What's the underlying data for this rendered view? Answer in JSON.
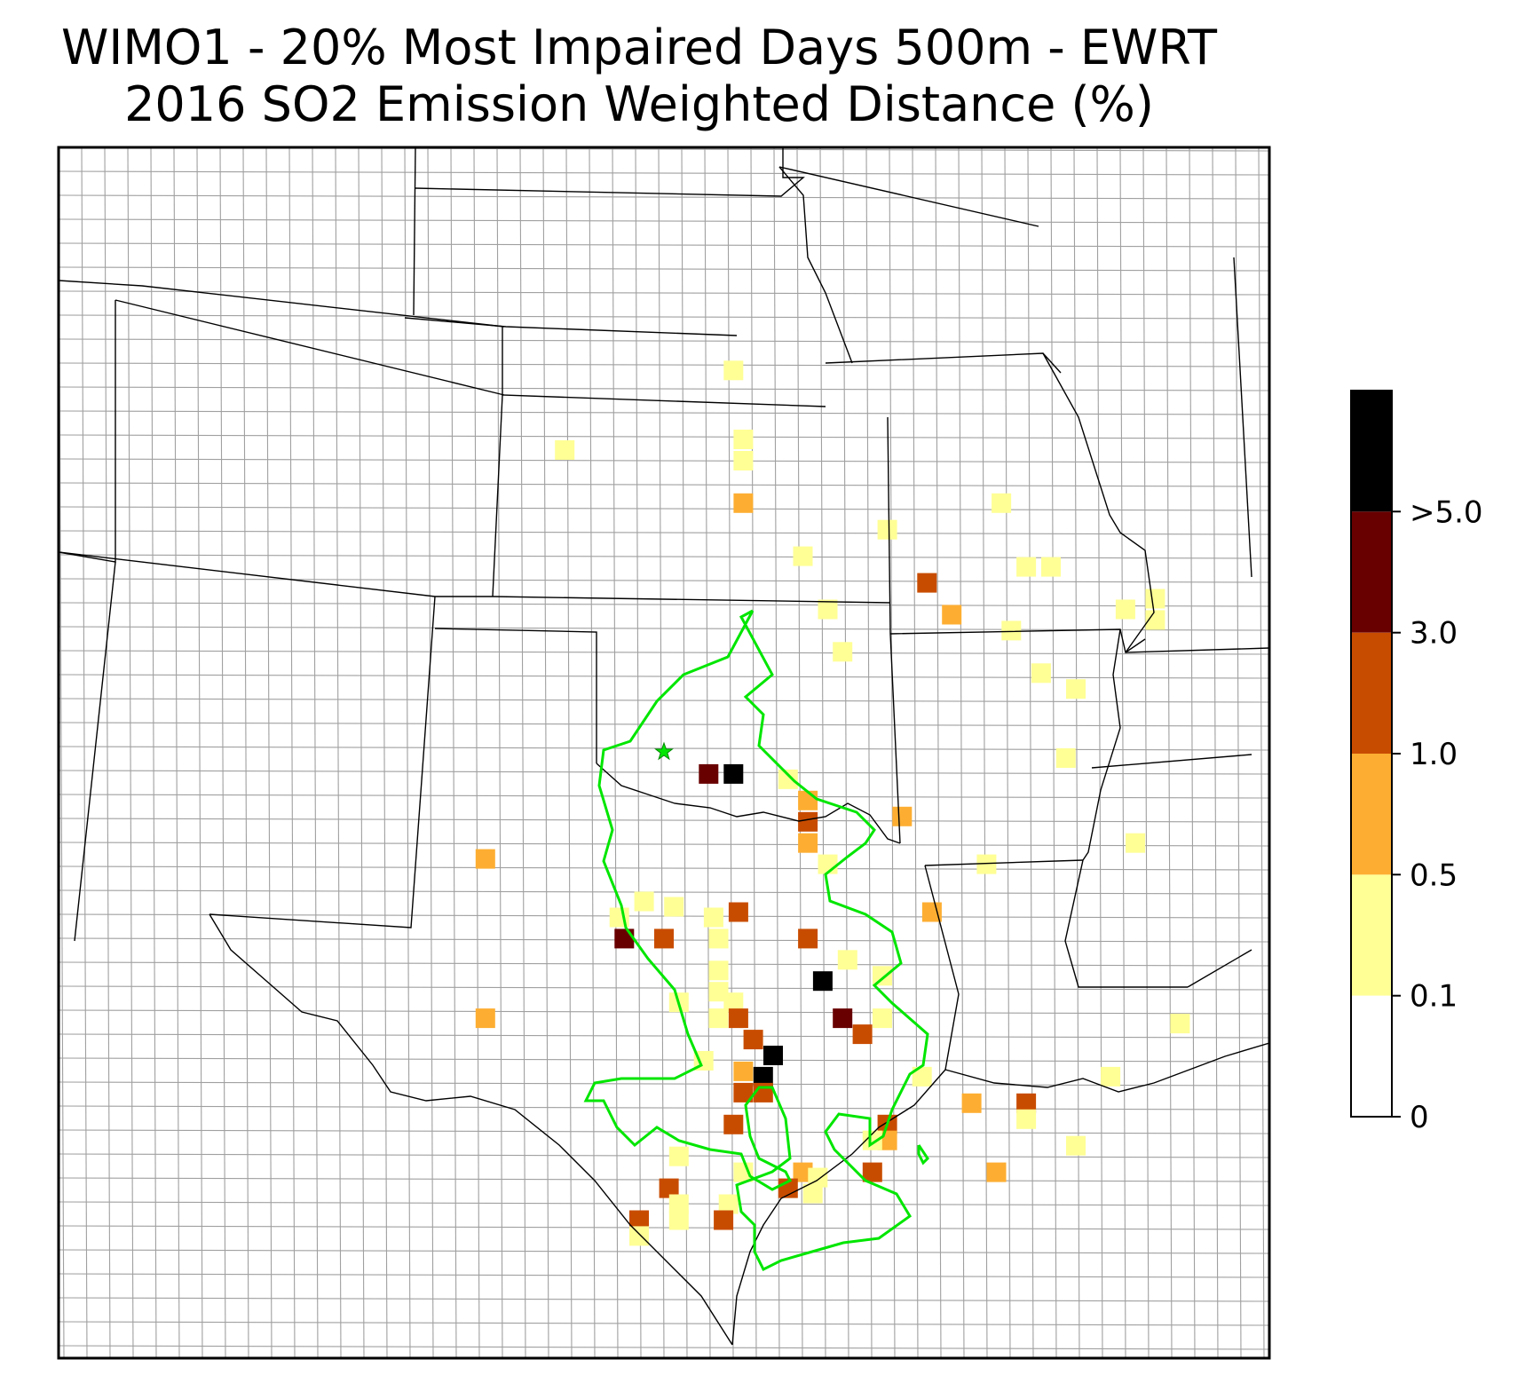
{
  "title": {
    "line1": "WIMO1 - 20% Most Impaired Days 500m - EWRT",
    "line2": "2016 SO2 Emission Weighted Distance (%)"
  },
  "colors": {
    "bin_0_01": "#ffffff",
    "bin_01_05": "#ffff96",
    "bin_05_10": "#fdae32",
    "bin_10_30": "#c84c00",
    "bin_30_50": "#690000",
    "bin_gt5": "#000000",
    "contour": "#00e600",
    "state_border": "#000000",
    "county_border": "#a0a0a0"
  },
  "colorbar": {
    "ticks": [
      "0",
      "0.1",
      "0.5",
      "1.0",
      "3.0",
      ">5.0"
    ]
  },
  "markers": {
    "site": "star",
    "site_icon": "star-icon"
  },
  "cells": [
    {
      "lon": -97.0,
      "lat": 44.6,
      "bin": "bin_01_05"
    },
    {
      "lon": -100.4,
      "lat": 43.1,
      "bin": "bin_01_05"
    },
    {
      "lon": -96.8,
      "lat": 43.3,
      "bin": "bin_01_05"
    },
    {
      "lon": -96.8,
      "lat": 42.9,
      "bin": "bin_01_05"
    },
    {
      "lon": -96.8,
      "lat": 42.1,
      "bin": "bin_05_10"
    },
    {
      "lon": -91.6,
      "lat": 42.1,
      "bin": "bin_01_05"
    },
    {
      "lon": -90.6,
      "lat": 40.9,
      "bin": "bin_01_05"
    },
    {
      "lon": -93.9,
      "lat": 41.6,
      "bin": "bin_01_05"
    },
    {
      "lon": -95.6,
      "lat": 41.1,
      "bin": "bin_01_05"
    },
    {
      "lon": -93.1,
      "lat": 40.6,
      "bin": "bin_10_30"
    },
    {
      "lon": -91.1,
      "lat": 40.9,
      "bin": "bin_01_05"
    },
    {
      "lon": -92.6,
      "lat": 40.0,
      "bin": "bin_05_10"
    },
    {
      "lon": -95.1,
      "lat": 40.1,
      "bin": "bin_01_05"
    },
    {
      "lon": -94.8,
      "lat": 39.3,
      "bin": "bin_01_05"
    },
    {
      "lon": -91.4,
      "lat": 39.7,
      "bin": "bin_01_05"
    },
    {
      "lon": -90.8,
      "lat": 38.9,
      "bin": "bin_01_05"
    },
    {
      "lon": -97.5,
      "lat": 37.0,
      "bin": "bin_30_50"
    },
    {
      "lon": -97.0,
      "lat": 37.0,
      "bin": "bin_gt5"
    },
    {
      "lon": -95.9,
      "lat": 36.9,
      "bin": "bin_01_05"
    },
    {
      "lon": -95.5,
      "lat": 36.5,
      "bin": "bin_05_10"
    },
    {
      "lon": -95.5,
      "lat": 36.1,
      "bin": "bin_10_30"
    },
    {
      "lon": -95.5,
      "lat": 35.7,
      "bin": "bin_05_10"
    },
    {
      "lon": -95.1,
      "lat": 35.3,
      "bin": "bin_01_05"
    },
    {
      "lon": -93.6,
      "lat": 36.2,
      "bin": "bin_05_10"
    },
    {
      "lon": -91.9,
      "lat": 35.3,
      "bin": "bin_01_05"
    },
    {
      "lon": -102.0,
      "lat": 35.4,
      "bin": "bin_05_10"
    },
    {
      "lon": -98.8,
      "lat": 34.6,
      "bin": "bin_01_05"
    },
    {
      "lon": -98.2,
      "lat": 34.5,
      "bin": "bin_01_05"
    },
    {
      "lon": -97.4,
      "lat": 34.3,
      "bin": "bin_01_05"
    },
    {
      "lon": -96.9,
      "lat": 34.4,
      "bin": "bin_10_30"
    },
    {
      "lon": -99.3,
      "lat": 34.3,
      "bin": "bin_01_05"
    },
    {
      "lon": -99.2,
      "lat": 33.9,
      "bin": "bin_30_50"
    },
    {
      "lon": -98.4,
      "lat": 33.9,
      "bin": "bin_10_30"
    },
    {
      "lon": -97.3,
      "lat": 33.9,
      "bin": "bin_01_05"
    },
    {
      "lon": -95.5,
      "lat": 33.9,
      "bin": "bin_10_30"
    },
    {
      "lon": -93.0,
      "lat": 34.4,
      "bin": "bin_05_10"
    },
    {
      "lon": -94.7,
      "lat": 33.5,
      "bin": "bin_01_05"
    },
    {
      "lon": -94.0,
      "lat": 33.2,
      "bin": "bin_01_05"
    },
    {
      "lon": -97.3,
      "lat": 33.3,
      "bin": "bin_01_05"
    },
    {
      "lon": -97.3,
      "lat": 32.9,
      "bin": "bin_01_05"
    },
    {
      "lon": -98.1,
      "lat": 32.7,
      "bin": "bin_01_05"
    },
    {
      "lon": -97.0,
      "lat": 32.7,
      "bin": "bin_01_05"
    },
    {
      "lon": -95.2,
      "lat": 33.1,
      "bin": "bin_gt5"
    },
    {
      "lon": -102.0,
      "lat": 32.4,
      "bin": "bin_05_10"
    },
    {
      "lon": -97.3,
      "lat": 32.4,
      "bin": "bin_01_05"
    },
    {
      "lon": -96.9,
      "lat": 32.4,
      "bin": "bin_10_30"
    },
    {
      "lon": -94.8,
      "lat": 32.4,
      "bin": "bin_30_50"
    },
    {
      "lon": -94.0,
      "lat": 32.4,
      "bin": "bin_01_05"
    },
    {
      "lon": -94.4,
      "lat": 32.1,
      "bin": "bin_10_30"
    },
    {
      "lon": -96.6,
      "lat": 32.0,
      "bin": "bin_10_30"
    },
    {
      "lon": -96.2,
      "lat": 31.7,
      "bin": "bin_gt5"
    },
    {
      "lon": -97.6,
      "lat": 31.6,
      "bin": "bin_01_05"
    },
    {
      "lon": -96.8,
      "lat": 31.4,
      "bin": "bin_05_10"
    },
    {
      "lon": -96.4,
      "lat": 31.3,
      "bin": "bin_gt5"
    },
    {
      "lon": -96.8,
      "lat": 31.0,
      "bin": "bin_10_30"
    },
    {
      "lon": -96.4,
      "lat": 31.0,
      "bin": "bin_10_30"
    },
    {
      "lon": -93.2,
      "lat": 31.3,
      "bin": "bin_01_05"
    },
    {
      "lon": -92.2,
      "lat": 30.8,
      "bin": "bin_05_10"
    },
    {
      "lon": -91.1,
      "lat": 30.8,
      "bin": "bin_10_30"
    },
    {
      "lon": -91.1,
      "lat": 30.5,
      "bin": "bin_01_05"
    },
    {
      "lon": -89.4,
      "lat": 31.3,
      "bin": "bin_01_05"
    },
    {
      "lon": -97.0,
      "lat": 30.4,
      "bin": "bin_10_30"
    },
    {
      "lon": -93.9,
      "lat": 30.4,
      "bin": "bin_10_30"
    },
    {
      "lon": -93.9,
      "lat": 30.1,
      "bin": "bin_05_10"
    },
    {
      "lon": -94.2,
      "lat": 30.1,
      "bin": "bin_01_05"
    },
    {
      "lon": -90.1,
      "lat": 30.0,
      "bin": "bin_01_05"
    },
    {
      "lon": -98.1,
      "lat": 29.8,
      "bin": "bin_01_05"
    },
    {
      "lon": -96.8,
      "lat": 29.5,
      "bin": "bin_01_05"
    },
    {
      "lon": -95.6,
      "lat": 29.5,
      "bin": "bin_05_10"
    },
    {
      "lon": -95.3,
      "lat": 29.4,
      "bin": "bin_01_05"
    },
    {
      "lon": -94.2,
      "lat": 29.5,
      "bin": "bin_10_30"
    },
    {
      "lon": -91.7,
      "lat": 29.5,
      "bin": "bin_05_10"
    },
    {
      "lon": -98.3,
      "lat": 29.2,
      "bin": "bin_10_30"
    },
    {
      "lon": -95.9,
      "lat": 29.2,
      "bin": "bin_10_30"
    },
    {
      "lon": -95.4,
      "lat": 29.1,
      "bin": "bin_01_05"
    },
    {
      "lon": -98.1,
      "lat": 28.9,
      "bin": "bin_01_05"
    },
    {
      "lon": -97.1,
      "lat": 28.9,
      "bin": "bin_01_05"
    },
    {
      "lon": -98.1,
      "lat": 28.6,
      "bin": "bin_01_05"
    },
    {
      "lon": -98.9,
      "lat": 28.6,
      "bin": "bin_10_30"
    },
    {
      "lon": -97.2,
      "lat": 28.6,
      "bin": "bin_10_30"
    },
    {
      "lon": -98.9,
      "lat": 28.3,
      "bin": "bin_01_05"
    },
    {
      "lon": -88.9,
      "lat": 35.7,
      "bin": "bin_01_05"
    },
    {
      "lon": -88.5,
      "lat": 40.3,
      "bin": "bin_01_05"
    },
    {
      "lon": -88.5,
      "lat": 39.9,
      "bin": "bin_01_05"
    },
    {
      "lon": -89.1,
      "lat": 40.1,
      "bin": "bin_01_05"
    },
    {
      "lon": -90.1,
      "lat": 38.6,
      "bin": "bin_01_05"
    },
    {
      "lon": -90.3,
      "lat": 37.3,
      "bin": "bin_01_05"
    },
    {
      "lon": -88.0,
      "lat": 32.3,
      "bin": "bin_01_05"
    }
  ]
}
